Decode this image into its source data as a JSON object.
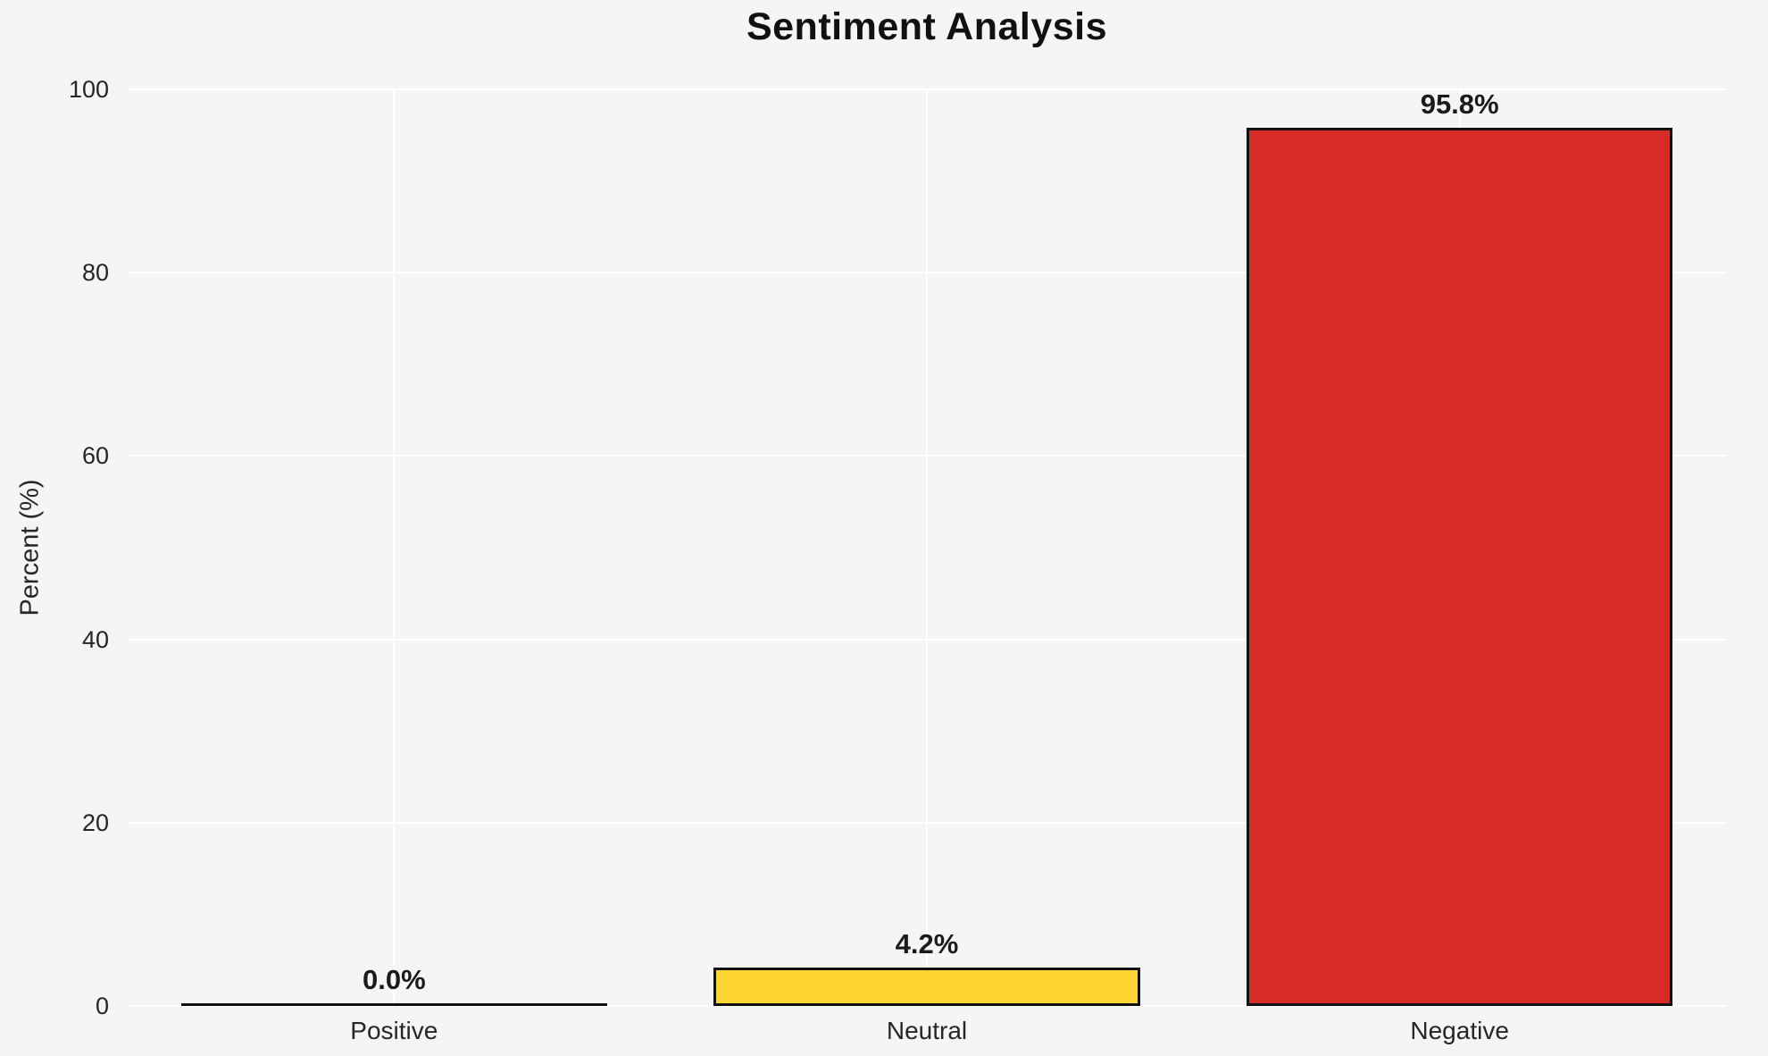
{
  "chart_data": {
    "type": "bar",
    "title": "Sentiment Analysis",
    "xlabel": "",
    "ylabel": "Percent (%)",
    "categories": [
      "Positive",
      "Neutral",
      "Negative"
    ],
    "values": [
      0.0,
      4.2,
      95.8
    ],
    "value_labels": [
      "0.0%",
      "4.2%",
      "95.8%"
    ],
    "bar_colors": [
      "none",
      "#fdd633",
      "#d62b27"
    ],
    "bar_edge_color": "#111111",
    "ylim": [
      0,
      100
    ],
    "yticks": [
      0,
      20,
      40,
      60,
      80,
      100
    ],
    "grid": "both",
    "grid_color": "#ffffff",
    "background_color": "#f5f5f6",
    "text_color": "#262626",
    "legend": "none"
  }
}
